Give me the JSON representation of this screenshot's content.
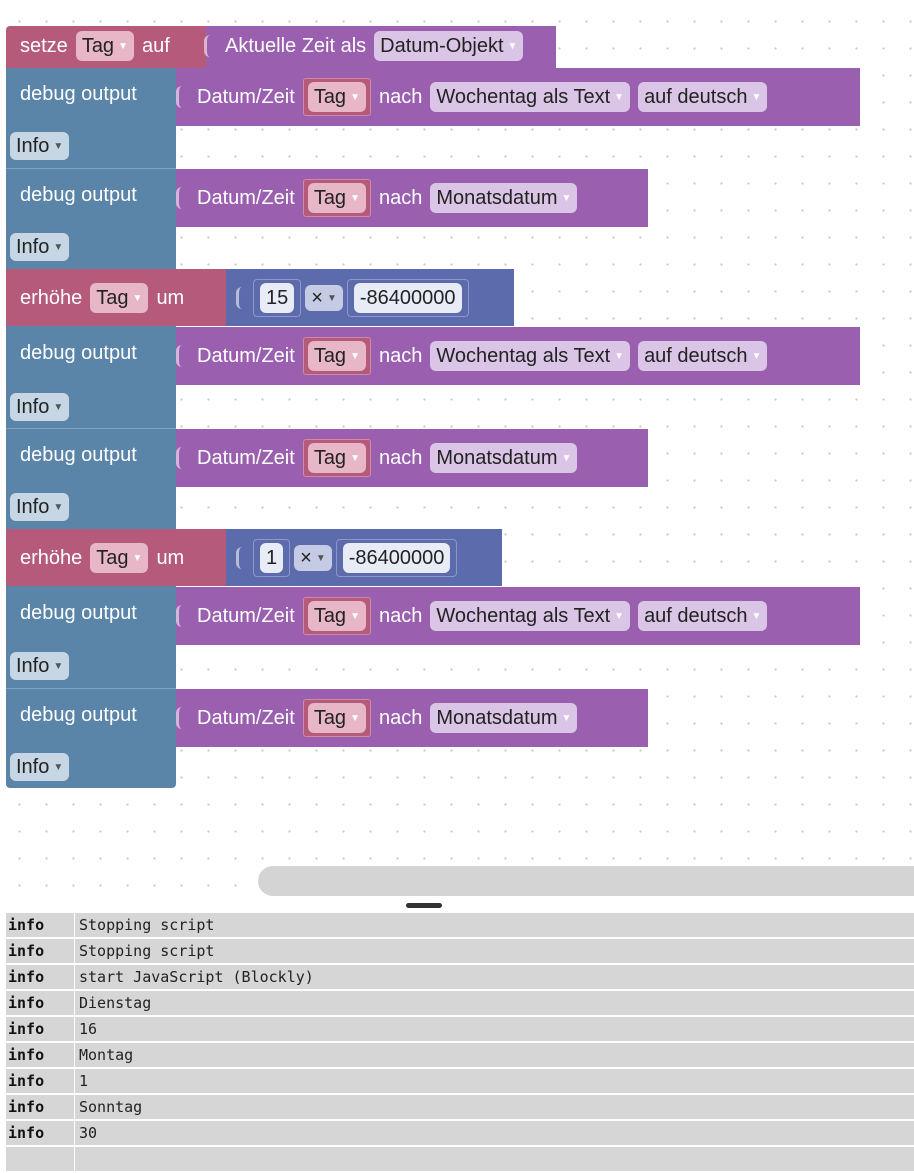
{
  "blocks": {
    "setze": {
      "label": "setze",
      "var": "Tag",
      "auf": "auf",
      "time_label": "Aktuelle Zeit als",
      "format": "Datum-Objekt"
    },
    "debug1": {
      "label": "debug output",
      "date_label": "Datum/Zeit",
      "var": "Tag",
      "nach": "nach",
      "format": "Wochentag als Text",
      "lang": "auf deutsch",
      "level": "Info"
    },
    "debug2": {
      "label": "debug output",
      "date_label": "Datum/Zeit",
      "var": "Tag",
      "nach": "nach",
      "format": "Monatsdatum",
      "level": "Info"
    },
    "erhoehe1": {
      "label": "erhöhe",
      "var": "Tag",
      "um": "um",
      "num1": "15",
      "op": "×",
      "num2": "-86400000"
    },
    "debug3": {
      "label": "debug output",
      "date_label": "Datum/Zeit",
      "var": "Tag",
      "nach": "nach",
      "format": "Wochentag als Text",
      "lang": "auf deutsch",
      "level": "Info"
    },
    "debug4": {
      "label": "debug output",
      "date_label": "Datum/Zeit",
      "var": "Tag",
      "nach": "nach",
      "format": "Monatsdatum",
      "level": "Info"
    },
    "erhoehe2": {
      "label": "erhöhe",
      "var": "Tag",
      "um": "um",
      "num1": "1",
      "op": "×",
      "num2": "-86400000"
    },
    "debug5": {
      "label": "debug output",
      "date_label": "Datum/Zeit",
      "var": "Tag",
      "nach": "nach",
      "format": "Wochentag als Text",
      "lang": "auf deutsch",
      "level": "Info"
    },
    "debug6": {
      "label": "debug output",
      "date_label": "Datum/Zeit",
      "var": "Tag",
      "nach": "nach",
      "format": "Monatsdatum",
      "level": "Info"
    }
  },
  "log": [
    {
      "level": "info",
      "message": "Stopping script"
    },
    {
      "level": "info",
      "message": "Stopping script"
    },
    {
      "level": "info",
      "message": "start JavaScript (Blockly)"
    },
    {
      "level": "info",
      "message": "Dienstag"
    },
    {
      "level": "info",
      "message": "16"
    },
    {
      "level": "info",
      "message": "Montag"
    },
    {
      "level": "info",
      "message": "1"
    },
    {
      "level": "info",
      "message": "Sonntag"
    },
    {
      "level": "info",
      "message": "30"
    },
    {
      "level": "",
      "message": ""
    }
  ],
  "colors": {
    "setze": "#b55a7b",
    "text_block": "#9b5fb0",
    "debug": "#5a84a8",
    "math": "#5c6bab"
  },
  "icons": {
    "dropdown": "dropdown-arrow-icon",
    "puzzle": "puzzle-connector-icon"
  }
}
